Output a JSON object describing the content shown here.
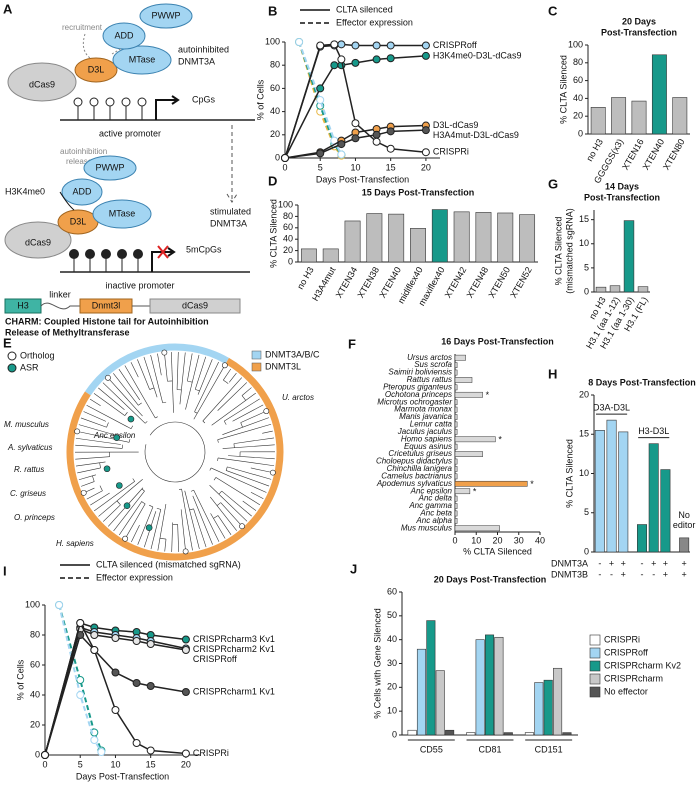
{
  "panel_a": {
    "panel": "A",
    "top": {
      "pwwp": "PWWP",
      "add": "ADD",
      "mtase": "MTase",
      "d3l": "D3L",
      "dcas9": "dCas9",
      "recruitment": "recruitment",
      "state": [
        "autoinhibited",
        "DNMT3A"
      ],
      "cpgs": "CpGs",
      "promoter": "active promoter"
    },
    "transition": [
      "stimulated",
      "DNMT3A"
    ],
    "bottom": {
      "release": [
        "autoinhibition",
        "release"
      ],
      "h3k4me0": "H3K4me0",
      "pwwp": "PWWP",
      "add": "ADD",
      "mtase": "MTase",
      "d3l": "D3L",
      "dcas9": "dCas9",
      "cpgs": "5mCpGs",
      "promoter": "inactive promoter"
    },
    "construct": {
      "h3": "H3",
      "linker": "linker",
      "dnmt3l": "Dnmt3l",
      "dcas9": "dCas9"
    },
    "caption": [
      "CHARM: Coupled Histone tail for Autoinhibition",
      "Release of Methyltransferase"
    ]
  },
  "panel_e": {
    "panel": "E",
    "legend": [
      "Ortholog",
      "ASR"
    ],
    "ring_legend": [
      {
        "name": "DNMT3A/B/C",
        "color": "#a3d5f2"
      },
      {
        "name": "DNMT3L",
        "color": "#f0a04b"
      }
    ],
    "labels": [
      "U. arctos",
      "M. musculus",
      "A. sylvaticus",
      "Anc epsilon",
      "R. rattus",
      "C. griseus",
      "O. princeps",
      "H. sapiens"
    ]
  },
  "chart_data": [
    {
      "type": "line",
      "panel": "B",
      "legend": [
        "CLTA silenced",
        "Effector expression"
      ],
      "xlabel": "Days Post-Transfection",
      "ylabel": "% of Cells",
      "xlim": [
        0,
        22
      ],
      "xticks": [
        0,
        5,
        10,
        15,
        20
      ],
      "ylim": [
        0,
        100
      ],
      "yticks": [
        0,
        20,
        40,
        60,
        80,
        100
      ],
      "series": [
        {
          "name": "CRISPRoff",
          "color": "#a3d5f2",
          "x": [
            0,
            5,
            7,
            8,
            10,
            13,
            15,
            20
          ],
          "values": [
            0,
            96,
            97,
            98,
            97,
            97,
            97,
            97
          ]
        },
        {
          "name": "H3K4me0-D3L-dCas9",
          "color": "#17998a",
          "x": [
            0,
            5,
            7,
            8,
            10,
            13,
            15,
            20
          ],
          "values": [
            0,
            60,
            80,
            80,
            82,
            85,
            86,
            88
          ]
        },
        {
          "name": "D3L-dCas9",
          "color": "#f0a04b",
          "x": [
            0,
            5,
            8,
            10,
            13,
            15,
            20
          ],
          "values": [
            0,
            5,
            15,
            22,
            25,
            27,
            28
          ]
        },
        {
          "name": "H3A4mut-D3L-dCas9",
          "color": "#555555",
          "x": [
            0,
            5,
            8,
            10,
            13,
            15,
            20
          ],
          "values": [
            0,
            4,
            12,
            17,
            20,
            23,
            24
          ]
        },
        {
          "name": "CRISPRi",
          "color": "#ffffff",
          "x": [
            0,
            5,
            7,
            8,
            10,
            13,
            15,
            20
          ],
          "values": [
            0,
            97,
            98,
            85,
            30,
            14,
            8,
            5
          ]
        },
        {
          "style": "dashed",
          "color": "#e8b640",
          "x": [
            2,
            5,
            7,
            8
          ],
          "values": [
            100,
            40,
            10,
            2
          ]
        },
        {
          "style": "dashed",
          "color": "#17998a",
          "x": [
            2,
            5,
            7,
            8
          ],
          "values": [
            100,
            45,
            12,
            3
          ]
        },
        {
          "style": "dashed",
          "color": "#a3d5f2",
          "x": [
            2,
            5,
            7,
            8
          ],
          "values": [
            100,
            50,
            15,
            3
          ]
        }
      ]
    },
    {
      "type": "bar",
      "panel": "C",
      "title": [
        "20 Days",
        "Post-Transfection"
      ],
      "ylabel": "% CLTA Silenced",
      "categories": [
        "no H3",
        "GGGGS(x3)",
        "XTEN16",
        "XTEN40",
        "XTEN80"
      ],
      "values": [
        30,
        41,
        37,
        89,
        41
      ],
      "colors": [
        "#bdbdbd",
        "#bdbdbd",
        "#bdbdbd",
        "#17998a",
        "#bdbdbd"
      ],
      "ylim": [
        0,
        100
      ],
      "yticks": [
        0,
        20,
        40,
        60,
        80,
        100
      ]
    },
    {
      "type": "bar",
      "panel": "D",
      "title": "15 Days Post-Transfection",
      "ylabel": "% CLTA Silenced",
      "categories": [
        "no H3",
        "H3A4mut",
        "XTEN34",
        "XTEN38",
        "XTEN40",
        "midiflex40",
        "maxiflex40",
        "XTEN42",
        "XTEN48",
        "XTEN50",
        "XTEN52"
      ],
      "values": [
        23,
        23,
        72,
        85,
        84,
        59,
        92,
        88,
        87,
        86,
        83
      ],
      "colors": [
        "#bdbdbd",
        "#bdbdbd",
        "#bdbdbd",
        "#bdbdbd",
        "#bdbdbd",
        "#bdbdbd",
        "#17998a",
        "#bdbdbd",
        "#bdbdbd",
        "#bdbdbd",
        "#bdbdbd"
      ],
      "ylim": [
        0,
        100
      ],
      "yticks": [
        0,
        20,
        40,
        60,
        80,
        100
      ]
    },
    {
      "type": "hbar",
      "panel": "F",
      "title": "16 Days Post-Transfection",
      "xlabel": "% CLTA Silenced",
      "categories": [
        "Ursus arctos",
        "Sus scrofa",
        "Saimiri boliviensis",
        "Rattus rattus",
        "Pteropus giganteus",
        "Ochotona princeps",
        "Microtus ochrogaster",
        "Marmota monax",
        "Manis javanica",
        "Lemur catta",
        "Jaculus jaculus",
        "Homo sapiens",
        "Equus asinus",
        "Cricetulus griseus",
        "Choloepus didactylus",
        "Chinchilla lanigera",
        "Camelus bactrianus",
        "Apodemus sylvaticus",
        "Anc epsilon",
        "Anc delta",
        "Anc gamma",
        "Anc beta",
        "Anc alpha",
        "Mus musculus"
      ],
      "values": [
        5,
        1,
        1,
        8,
        1,
        13,
        1,
        1,
        1,
        1,
        1,
        19,
        1,
        13,
        1,
        1,
        1,
        34,
        7,
        1,
        1,
        1,
        1,
        21
      ],
      "markers": [
        null,
        null,
        null,
        null,
        null,
        "*",
        null,
        null,
        null,
        null,
        null,
        "*",
        null,
        null,
        null,
        null,
        null,
        "*",
        "*",
        null,
        null,
        null,
        null,
        null
      ],
      "colors": [
        "#d9d9d9",
        "#d9d9d9",
        "#d9d9d9",
        "#d9d9d9",
        "#d9d9d9",
        "#d9d9d9",
        "#d9d9d9",
        "#d9d9d9",
        "#d9d9d9",
        "#d9d9d9",
        "#d9d9d9",
        "#d9d9d9",
        "#d9d9d9",
        "#d9d9d9",
        "#d9d9d9",
        "#d9d9d9",
        "#d9d9d9",
        "#f0a04b",
        "#d9d9d9",
        "#d9d9d9",
        "#d9d9d9",
        "#d9d9d9",
        "#d9d9d9",
        "#d9d9d9"
      ],
      "xlim": [
        0,
        40
      ],
      "xticks": [
        0,
        10,
        20,
        30,
        40
      ]
    },
    {
      "type": "bar",
      "panel": "G",
      "title": [
        "14 Days",
        "Post-Transfection"
      ],
      "ylabel": [
        "% CLTA Silenced",
        "(mismatched sgRNA)"
      ],
      "categories": [
        "no H3",
        "H3.1 (aa 1-12)",
        "H3.1 (aa 1-30)",
        "H3.1 (FL)"
      ],
      "values": [
        1,
        1.3,
        14.8,
        1.1
      ],
      "colors": [
        "#bdbdbd",
        "#bdbdbd",
        "#17998a",
        "#bdbdbd"
      ],
      "ylim": [
        0,
        17
      ],
      "yticks": [
        0,
        5,
        10,
        15
      ]
    },
    {
      "type": "bar_groups",
      "panel": "H",
      "title": "8 Days Post-Transfection",
      "ylabel": "% CLTA Silenced",
      "groups": [
        {
          "label": "D3A-D3L",
          "color": "#a3d5f2",
          "values": [
            15.5,
            16.8,
            15.3
          ]
        },
        {
          "label": "H3-D3L",
          "color": "#17998a",
          "values": [
            3.5,
            13.8,
            10.5
          ]
        },
        {
          "label": [
            "No",
            "editor"
          ],
          "color": "#888888",
          "values": [
            1.8
          ]
        }
      ],
      "rows": [
        {
          "name": "DNMT3A",
          "values": [
            "-",
            "+",
            "+",
            "-",
            "+",
            "+",
            "+"
          ]
        },
        {
          "name": "DNMT3B",
          "values": [
            "-",
            "-",
            "+",
            "-",
            "-",
            "+",
            "+"
          ]
        }
      ],
      "ylim": [
        0,
        20
      ],
      "yticks": [
        0,
        5,
        10,
        15,
        20
      ]
    },
    {
      "type": "line",
      "panel": "I",
      "legend": [
        "CLTA silenced (mismatched sgRNA)",
        "Effector expression"
      ],
      "xlabel": "Days Post-Transfection",
      "ylabel": "% of Cells",
      "xlim": [
        0,
        22
      ],
      "xticks": [
        0,
        5,
        10,
        15,
        20
      ],
      "ylim": [
        0,
        100
      ],
      "yticks": [
        0,
        20,
        40,
        60,
        80,
        100
      ],
      "series": [
        {
          "name": "CRISPRcharm3 Kv1",
          "color": "#17998a",
          "x": [
            0,
            5,
            7,
            10,
            13,
            15,
            20
          ],
          "values": [
            0,
            88,
            85,
            83,
            82,
            80,
            77
          ]
        },
        {
          "name": "CRISPRcharm2 Kv1",
          "color": "#a3d5f2",
          "x": [
            0,
            5,
            7,
            10,
            13,
            15,
            20
          ],
          "values": [
            0,
            85,
            82,
            80,
            78,
            76,
            71
          ]
        },
        {
          "name": "CRISPRoff",
          "color": "#e6e6e6",
          "x": [
            0,
            5,
            7,
            10,
            13,
            15,
            20
          ],
          "values": [
            0,
            84,
            80,
            78,
            76,
            74,
            70
          ]
        },
        {
          "name": "CRISPRcharm1 Kv1",
          "color": "#555555",
          "x": [
            0,
            5,
            7,
            10,
            13,
            15,
            20
          ],
          "values": [
            0,
            80,
            70,
            55,
            48,
            46,
            42
          ]
        },
        {
          "name": "CRISPRi",
          "color": "#ffffff",
          "x": [
            0,
            5,
            7,
            10,
            13,
            15,
            20
          ],
          "values": [
            0,
            88,
            70,
            30,
            8,
            3,
            1
          ]
        },
        {
          "style": "dashed",
          "color": "#17998a",
          "x": [
            2,
            5,
            7,
            8
          ],
          "values": [
            100,
            50,
            15,
            3
          ]
        },
        {
          "style": "dashed",
          "color": "#a3d5f2",
          "x": [
            2,
            5,
            7,
            8
          ],
          "values": [
            100,
            40,
            10,
            2
          ]
        }
      ]
    },
    {
      "type": "grouped_bar",
      "panel": "J",
      "title": "20 Days Post-Transfection",
      "ylabel": "% Cells with Gene Silenced",
      "categories": [
        "CD55",
        "CD81",
        "CD151"
      ],
      "series": [
        {
          "name": "CRISPRi",
          "color": "#ffffff",
          "values": [
            2,
            1,
            1
          ]
        },
        {
          "name": "CRISPRoff",
          "color": "#a3d5f2",
          "values": [
            36,
            40,
            22
          ]
        },
        {
          "name": "CRISPRcharm Kv2",
          "color": "#17998a",
          "values": [
            48,
            42,
            23
          ]
        },
        {
          "name": "CRISPRcharm",
          "color": "#c8c8c8",
          "values": [
            27,
            41,
            28
          ]
        },
        {
          "name": "No effector",
          "color": "#555555",
          "values": [
            2,
            1,
            1
          ]
        }
      ],
      "ylim": [
        0,
        60
      ],
      "yticks": [
        0,
        10,
        20,
        30,
        40,
        50,
        60
      ]
    }
  ]
}
